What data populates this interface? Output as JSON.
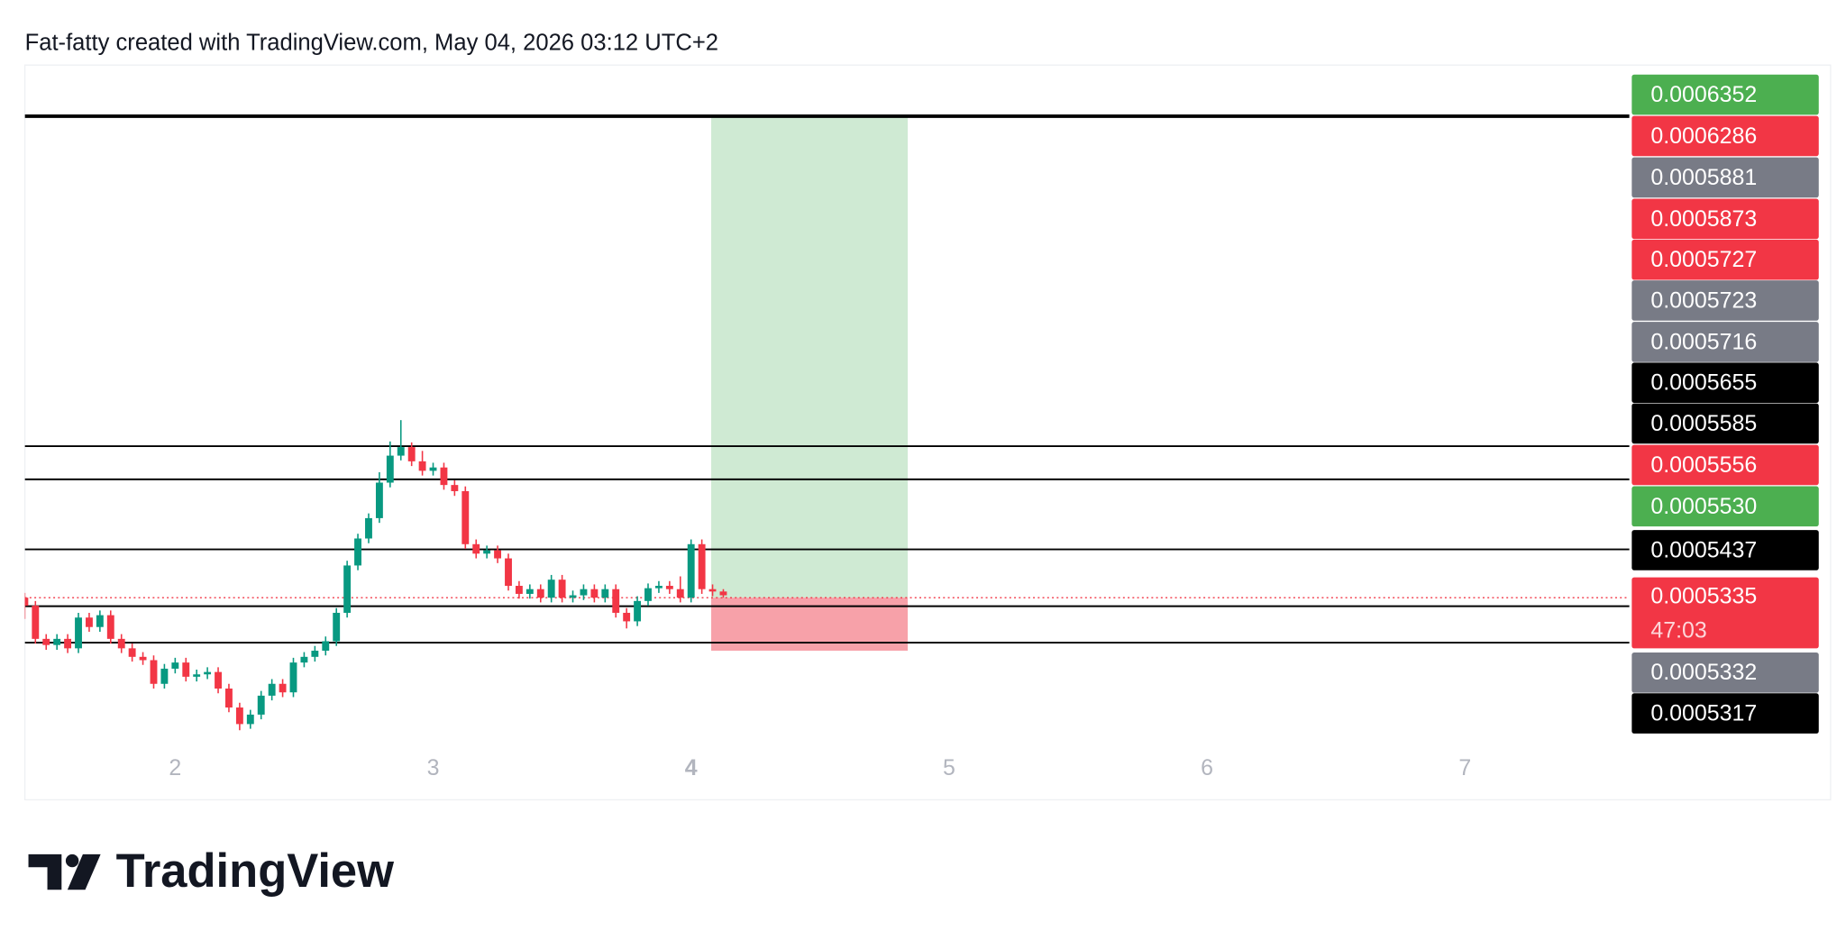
{
  "chart_data": {
    "type": "candlestick",
    "title": "Fat-fatty created with TradingView.com, May 04, 2026 03:12 UTC+2",
    "logo": "TradingView",
    "up_color": "#089981",
    "down_color": "#f23645",
    "xlim": [
      1.4174,
      7.6376
    ],
    "ylim": [
      0.0005018,
      0.000646
    ],
    "xticks": [
      2,
      3,
      4,
      5,
      6,
      7
    ],
    "x": [
      1.4167,
      1.4583,
      1.5,
      1.5417,
      1.5833,
      1.625,
      1.6667,
      1.7083,
      1.75,
      1.7917,
      1.8333,
      1.875,
      1.9167,
      1.9583,
      2,
      2.0417,
      2.0833,
      2.125,
      2.1667,
      2.2083,
      2.25,
      2.2917,
      2.3333,
      2.375,
      2.4167,
      2.4583,
      2.5,
      2.5417,
      2.5833,
      2.625,
      2.6667,
      2.7083,
      2.75,
      2.7917,
      2.8333,
      2.875,
      2.9167,
      2.9583,
      3,
      3.0417,
      3.0833,
      3.125,
      3.1667,
      3.2083,
      3.25,
      3.2917,
      3.3333,
      3.375,
      3.4167,
      3.4583,
      3.5,
      3.5417,
      3.5833,
      3.625,
      3.6667,
      3.7083,
      3.75,
      3.7917,
      3.8333,
      3.875,
      3.9167,
      3.9583,
      4,
      4.0417,
      4.0833,
      4.125
    ],
    "open": [
      0.0005335,
      0.0005318,
      0.0005248,
      0.0005235,
      0.0005248,
      0.0005228,
      0.0005293,
      0.0005273,
      0.0005298,
      0.0005248,
      0.0005228,
      0.000521,
      0.0005203,
      0.0005153,
      0.0005185,
      0.0005198,
      0.0005168,
      0.0005173,
      0.0005178,
      0.0005143,
      0.0005103,
      0.0005068,
      0.0005088,
      0.0005128,
      0.0005153,
      0.0005135,
      0.0005198,
      0.000521,
      0.0005223,
      0.0005243,
      0.0005303,
      0.0005403,
      0.000546,
      0.0005503,
      0.0005578,
      0.0005635,
      0.0005653,
      0.0005623,
      0.0005603,
      0.000561,
      0.0005573,
      0.000556,
      0.0005448,
      0.0005428,
      0.0005435,
      0.0005418,
      0.000536,
      0.0005343,
      0.0005353,
      0.0005335,
      0.0005373,
      0.0005335,
      0.000534,
      0.0005353,
      0.0005335,
      0.0005353,
      0.0005303,
      0.0005285,
      0.0005328,
      0.0005355,
      0.000536,
      0.0005353,
      0.0005335,
      0.0005448,
      0.0005353,
      0.0005348
    ],
    "high": [
      0.0005345,
      0.0005328,
      0.0005258,
      0.0005258,
      0.0005258,
      0.0005303,
      0.0005303,
      0.0005308,
      0.0005308,
      0.0005258,
      0.0005238,
      0.000522,
      0.0005213,
      0.0005195,
      0.0005208,
      0.0005208,
      0.0005183,
      0.0005188,
      0.0005188,
      0.0005153,
      0.0005113,
      0.0005098,
      0.0005138,
      0.0005163,
      0.0005163,
      0.0005208,
      0.000522,
      0.0005233,
      0.0005253,
      0.0005313,
      0.0005413,
      0.000547,
      0.0005513,
      0.00056,
      0.0005665,
      0.000571,
      0.0005663,
      0.0005645,
      0.000562,
      0.000562,
      0.0005583,
      0.000557,
      0.0005458,
      0.0005445,
      0.0005445,
      0.0005428,
      0.000537,
      0.0005363,
      0.0005363,
      0.0005383,
      0.0005383,
      0.000535,
      0.0005363,
      0.0005363,
      0.0005363,
      0.0005363,
      0.0005313,
      0.0005338,
      0.0005365,
      0.000537,
      0.000537,
      0.000538,
      0.0005458,
      0.0005458,
      0.0005363,
      0.0005353
    ],
    "low": [
      0.000529,
      0.0005238,
      0.0005225,
      0.0005225,
      0.0005218,
      0.0005218,
      0.0005263,
      0.0005263,
      0.0005238,
      0.0005218,
      0.00052,
      0.0005193,
      0.0005143,
      0.0005143,
      0.0005175,
      0.0005158,
      0.0005158,
      0.0005163,
      0.0005133,
      0.0005093,
      0.0005055,
      0.0005058,
      0.0005078,
      0.0005118,
      0.0005125,
      0.0005125,
      0.0005188,
      0.00052,
      0.0005213,
      0.0005233,
      0.0005293,
      0.0005393,
      0.000545,
      0.0005493,
      0.0005568,
      0.0005625,
      0.0005613,
      0.0005593,
      0.0005593,
      0.0005563,
      0.000555,
      0.0005438,
      0.0005418,
      0.0005418,
      0.0005408,
      0.000535,
      0.0005333,
      0.0005333,
      0.0005325,
      0.0005325,
      0.0005325,
      0.0005325,
      0.000533,
      0.0005325,
      0.0005325,
      0.0005293,
      0.000527,
      0.0005275,
      0.0005318,
      0.0005345,
      0.0005343,
      0.0005325,
      0.0005325,
      0.0005343,
      0.0005338,
      0.0005335
    ],
    "close": [
      0.0005318,
      0.0005248,
      0.0005235,
      0.0005248,
      0.0005228,
      0.0005293,
      0.0005273,
      0.0005298,
      0.0005248,
      0.0005228,
      0.000521,
      0.0005203,
      0.0005153,
      0.0005185,
      0.0005198,
      0.0005168,
      0.0005173,
      0.0005178,
      0.0005143,
      0.0005103,
      0.0005068,
      0.0005088,
      0.0005128,
      0.0005153,
      0.0005135,
      0.0005198,
      0.000521,
      0.0005223,
      0.0005243,
      0.0005303,
      0.0005403,
      0.000546,
      0.0005503,
      0.0005578,
      0.0005635,
      0.0005653,
      0.0005623,
      0.0005603,
      0.000561,
      0.0005573,
      0.000556,
      0.0005448,
      0.0005428,
      0.0005435,
      0.0005418,
      0.000536,
      0.0005343,
      0.0005353,
      0.0005335,
      0.0005373,
      0.0005335,
      0.000534,
      0.0005353,
      0.0005335,
      0.0005353,
      0.0005303,
      0.0005285,
      0.0005328,
      0.0005355,
      0.000536,
      0.0005353,
      0.0005335,
      0.0005448,
      0.0005353,
      0.0005348,
      0.000534
    ],
    "levels": [
      {
        "price": 0.0006352,
        "width": 3
      },
      {
        "price": 0.0005655,
        "width": 1.5
      },
      {
        "price": 0.0005585,
        "width": 1.5
      },
      {
        "price": 0.0005437,
        "width": 1.5
      },
      {
        "price": 0.0005317,
        "width": 1.5
      },
      {
        "price": 0.000524,
        "width": 1.5
      }
    ],
    "last_price": 0.0005335,
    "position": {
      "entry": 0.0005335,
      "target": 0.0006352,
      "stop": 0.0005223,
      "x": [
        4.078,
        4.84
      ],
      "profit_color": "#cfead3",
      "loss_color": "#f7a1a9"
    },
    "price_labels": [
      {
        "value": 0.0006352,
        "color": "#4caf50"
      },
      {
        "value": 0.0006286,
        "color": "#f23645"
      },
      {
        "value": 0.0005881,
        "color": "#787b86"
      },
      {
        "value": 0.0005873,
        "color": "#f23645"
      },
      {
        "value": 0.0005727,
        "color": "#f23645"
      },
      {
        "value": 0.0005723,
        "color": "#787b86"
      },
      {
        "value": 0.0005716,
        "color": "#787b86"
      },
      {
        "value": 0.0005655,
        "color": "#000000"
      },
      {
        "value": 0.0005585,
        "color": "#000000"
      },
      {
        "value": 0.0005556,
        "color": "#f23645"
      },
      {
        "value": {
          "value": 0.000553,
          "label": "0.0005530"
        },
        "color": "#4caf50"
      },
      {
        "value": 0.0005437,
        "color": "#000000"
      },
      {
        "value": 0.0005335,
        "color": "#f23645",
        "countdown": "47:03"
      },
      {
        "value": 0.0005332,
        "color": "#787b86"
      },
      {
        "value": 0.0005317,
        "color": "#000000"
      }
    ]
  }
}
